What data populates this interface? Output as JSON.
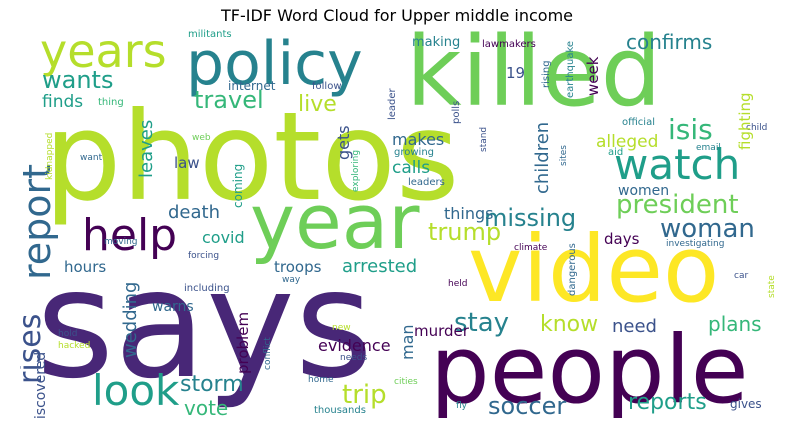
{
  "title": "TF-IDF Word Cloud for Upper middle income",
  "colors": {
    "dark_purple": "#440154",
    "purple": "#482777",
    "indigo": "#3b528b",
    "blue": "#31688e",
    "teal": "#26828e",
    "green_teal": "#1f9e89",
    "green": "#35b779",
    "light_green": "#6ece58",
    "lime": "#b5de2b",
    "yellow": "#fde725"
  },
  "words": [
    "says",
    "photos",
    "killed",
    "video",
    "people",
    "year",
    "policy",
    "years",
    "watch",
    "help",
    "report",
    "look",
    "rises",
    "woman",
    "president",
    "missing",
    "trump",
    "isis",
    "travel",
    "live",
    "wants",
    "confirms",
    "soccer",
    "trip",
    "stay",
    "know",
    "plans",
    "reports",
    "storm",
    "vote",
    "evidence",
    "arrested",
    "death",
    "need",
    "covid",
    "finds",
    "leaves",
    "law",
    "gets",
    "makes",
    "calls",
    "things",
    "children",
    "alleged",
    "days",
    "women",
    "troops",
    "hours",
    "wedding",
    "warns",
    "murder",
    "man",
    "problem",
    "discovered",
    "fighting",
    "week",
    "19",
    "making",
    "lawmakers",
    "militants",
    "earthquake",
    "leader",
    "polls",
    "rising",
    "internet",
    "follow",
    "thing",
    "child",
    "email",
    "official",
    "aid",
    "sites",
    "stand",
    "growing",
    "exploring",
    "leaders",
    "coming",
    "web",
    "kidnapped",
    "want",
    "moving",
    "forcing",
    "including",
    "investigating",
    "climate",
    "dangerous",
    "held",
    "way",
    "car",
    "state",
    "new",
    "hold",
    "hacked",
    "conflict",
    "needs",
    "home",
    "cities",
    "thousands",
    "fly",
    "gives"
  ]
}
